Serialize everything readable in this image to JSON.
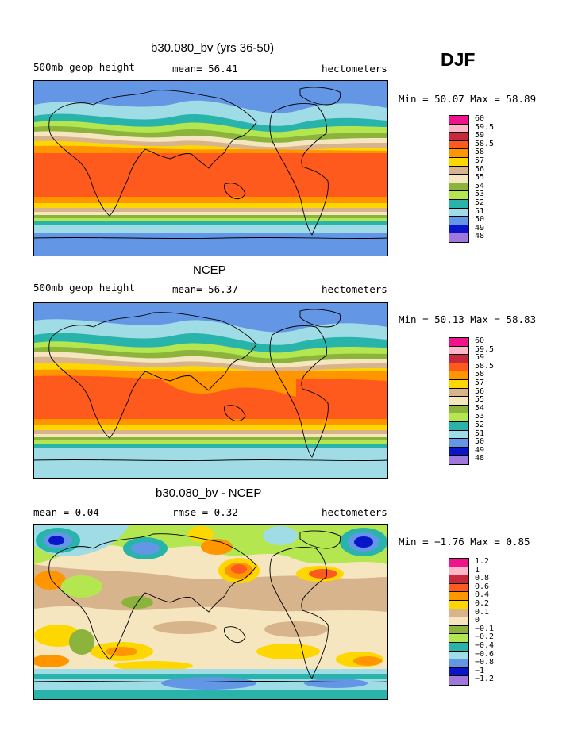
{
  "season": "DJF",
  "panels": [
    {
      "title": "b30.080_bv (yrs 36-50)",
      "left_label": "500mb geop height",
      "center_label": "mean=  56.41",
      "right_label": "hectometers",
      "minmax": "Min =  50.07 Max =  58.89",
      "colorbar": {
        "levels": [
          "60",
          "59.5",
          "59",
          "58.5",
          "58",
          "57",
          "56",
          "55",
          "54",
          "53",
          "52",
          "51",
          "50",
          "49",
          "48"
        ],
        "colors": [
          "#f0148c",
          "#ffb6c8",
          "#c8283c",
          "#ff5a1e",
          "#ff9600",
          "#ffd700",
          "#d8b48c",
          "#f5e6c0",
          "#8cb43c",
          "#b4e650",
          "#28b4aa",
          "#a0dce6",
          "#6496e6",
          "#0a14c8",
          "#a078dc"
        ]
      },
      "map_style": "height"
    },
    {
      "title": "NCEP",
      "left_label": "500mb geop height",
      "center_label": "mean=  56.37",
      "right_label": "hectometers",
      "minmax": "Min =  50.13 Max =  58.83",
      "colorbar": {
        "levels": [
          "60",
          "59.5",
          "59",
          "58.5",
          "58",
          "57",
          "56",
          "55",
          "54",
          "53",
          "52",
          "51",
          "50",
          "49",
          "48"
        ],
        "colors": [
          "#f0148c",
          "#ffb6c8",
          "#c8283c",
          "#ff5a1e",
          "#ff9600",
          "#ffd700",
          "#d8b48c",
          "#f5e6c0",
          "#8cb43c",
          "#b4e650",
          "#28b4aa",
          "#a0dce6",
          "#6496e6",
          "#0a14c8",
          "#a078dc"
        ]
      },
      "map_style": "height_obs"
    },
    {
      "title": "b30.080_bv - NCEP",
      "left_label": "mean =    0.04",
      "center_label": "rmse =    0.32",
      "right_label": "hectometers",
      "minmax": "Min = −1.76 Max =    0.85",
      "colorbar": {
        "levels": [
          "1.2",
          "1",
          "0.8",
          "0.6",
          "0.4",
          "0.2",
          "0.1",
          "0",
          "−0.1",
          "−0.2",
          "−0.4",
          "−0.6",
          "−0.8",
          "−1",
          "−1.2"
        ],
        "colors": [
          "#f0148c",
          "#ffb6c8",
          "#c8283c",
          "#ff5a1e",
          "#ff9600",
          "#ffd700",
          "#d8b48c",
          "#f5e6c0",
          "#8cb43c",
          "#b4e650",
          "#28b4aa",
          "#a0dce6",
          "#6496e6",
          "#0a14c8",
          "#a078dc"
        ]
      },
      "map_style": "diff"
    }
  ]
}
